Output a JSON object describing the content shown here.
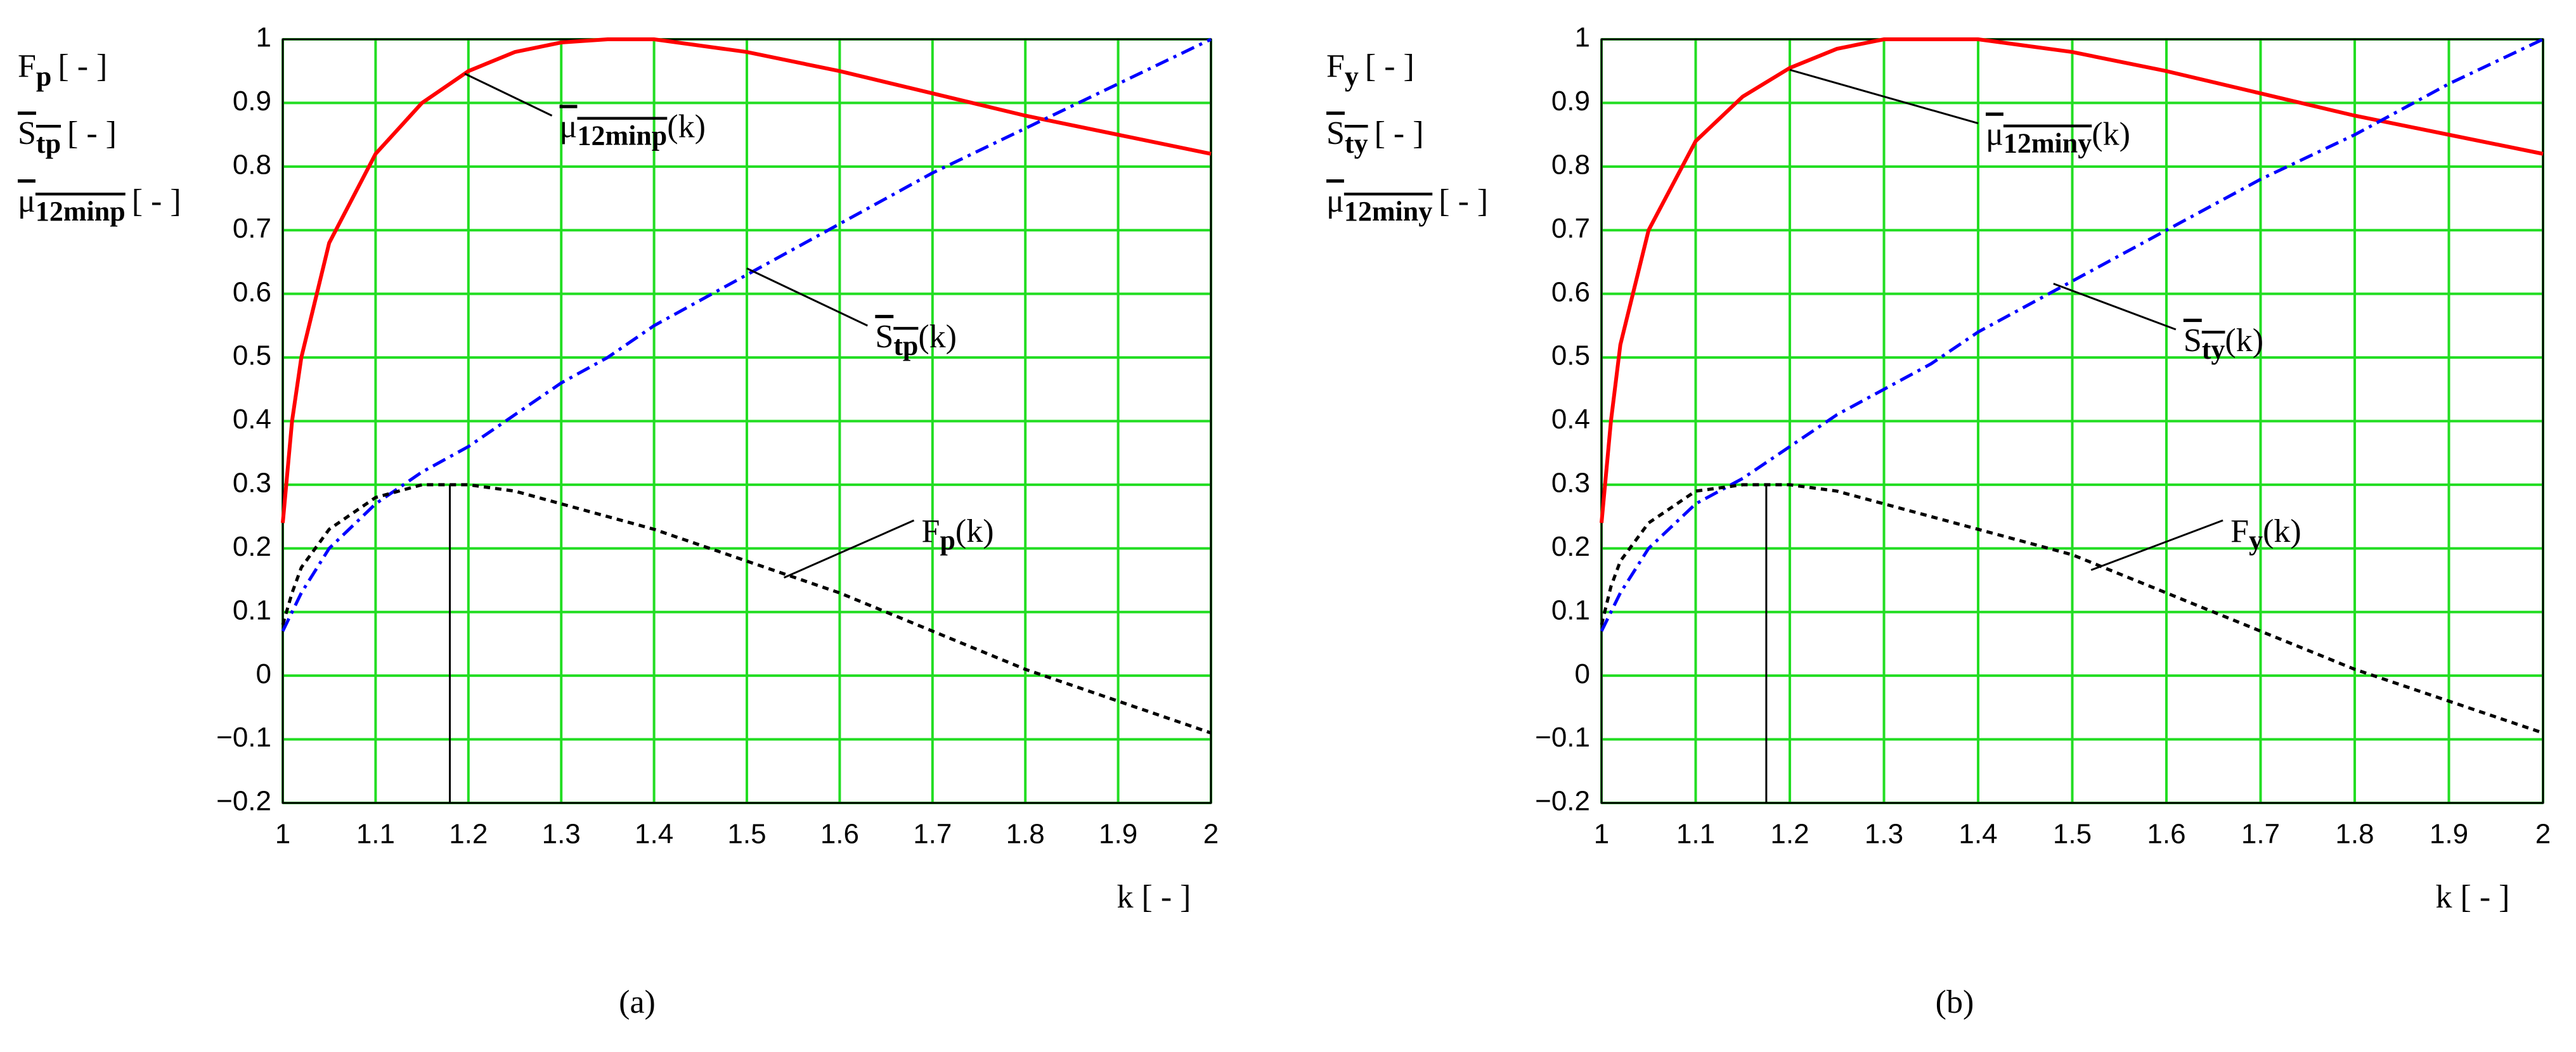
{
  "chart_data": [
    {
      "type": "line",
      "panel_label": "(a)",
      "x_label": "k [ - ]",
      "y_label": [
        {
          "main": "F",
          "sub": "p",
          "unit": "[ - ]"
        },
        {
          "main": "S",
          "sub": "tp",
          "unit": "[ - ]"
        },
        {
          "main": "μ",
          "sub": "12minp",
          "unit": "[ - ]"
        }
      ],
      "x": [
        1,
        1.01,
        1.02,
        1.05,
        1.1,
        1.15,
        1.2,
        1.25,
        1.3,
        1.35,
        1.4,
        1.5,
        1.6,
        1.7,
        1.8,
        1.9,
        2
      ],
      "series": [
        {
          "name": "μ",
          "sub": "12minp",
          "arg": "(k)",
          "color": "#ff0000",
          "style": "solid",
          "values": [
            0.24,
            0.4,
            0.5,
            0.68,
            0.82,
            0.9,
            0.95,
            0.98,
            0.995,
            1.0,
            1.0,
            0.98,
            0.95,
            0.915,
            0.88,
            0.85,
            0.82
          ]
        },
        {
          "name": "S",
          "sub": "tp",
          "arg": "(k)",
          "color": "#0000ff",
          "style": "dashdot",
          "values": [
            0.07,
            0.1,
            0.13,
            0.2,
            0.27,
            0.32,
            0.36,
            0.41,
            0.46,
            0.5,
            0.55,
            0.63,
            0.71,
            0.79,
            0.86,
            0.93,
            1.0
          ]
        },
        {
          "name": "F",
          "sub": "p",
          "arg": "(k)",
          "color": "#000000",
          "style": "dotted",
          "values": [
            0.08,
            0.13,
            0.17,
            0.23,
            0.28,
            0.3,
            0.3,
            0.29,
            0.27,
            0.25,
            0.23,
            0.18,
            0.13,
            0.07,
            0.01,
            -0.04,
            -0.09
          ]
        }
      ],
      "vline_x": 1.18,
      "xlim": [
        1,
        2
      ],
      "ylim": [
        -0.2,
        1
      ],
      "xticks": [
        1,
        1.1,
        1.2,
        1.3,
        1.4,
        1.5,
        1.6,
        1.7,
        1.8,
        1.9,
        2
      ],
      "yticks": [
        {
          "value": -0.2,
          "label": "−0.2"
        },
        {
          "value": -0.1,
          "label": "−0.1"
        },
        0,
        0.1,
        0.2,
        0.3,
        0.4,
        0.5,
        0.6,
        0.7,
        0.8,
        0.9,
        1
      ],
      "grid": true,
      "grid_color": "#22dd22"
    },
    {
      "type": "line",
      "panel_label": "(b)",
      "x_label": "k [ - ]",
      "y_label": [
        {
          "main": "F",
          "sub": "y",
          "unit": "[ - ]"
        },
        {
          "main": "S",
          "sub": "ty",
          "unit": "[ - ]"
        },
        {
          "main": "μ",
          "sub": "12miny",
          "unit": "[ - ]"
        }
      ],
      "x": [
        1,
        1.01,
        1.02,
        1.05,
        1.1,
        1.15,
        1.2,
        1.25,
        1.3,
        1.35,
        1.4,
        1.5,
        1.6,
        1.7,
        1.8,
        1.9,
        2
      ],
      "series": [
        {
          "name": "μ",
          "sub": "12miny",
          "arg": "(k)",
          "color": "#ff0000",
          "style": "solid",
          "values": [
            0.24,
            0.4,
            0.52,
            0.7,
            0.84,
            0.91,
            0.955,
            0.985,
            1.0,
            1.0,
            1.0,
            0.98,
            0.95,
            0.915,
            0.88,
            0.85,
            0.82
          ]
        },
        {
          "name": "S",
          "sub": "ty",
          "arg": "(k)",
          "color": "#0000ff",
          "style": "dashdot",
          "values": [
            0.07,
            0.1,
            0.13,
            0.2,
            0.27,
            0.31,
            0.36,
            0.41,
            0.45,
            0.49,
            0.54,
            0.62,
            0.7,
            0.78,
            0.85,
            0.93,
            1.0
          ]
        },
        {
          "name": "F",
          "sub": "y",
          "arg": "(k)",
          "color": "#000000",
          "style": "dotted",
          "values": [
            0.08,
            0.14,
            0.18,
            0.24,
            0.29,
            0.3,
            0.3,
            0.29,
            0.27,
            0.25,
            0.23,
            0.19,
            0.13,
            0.07,
            0.01,
            -0.04,
            -0.09
          ]
        }
      ],
      "vline_x": 1.175,
      "xlim": [
        1,
        2
      ],
      "ylim": [
        -0.2,
        1
      ],
      "xticks": [
        1,
        1.1,
        1.2,
        1.3,
        1.4,
        1.5,
        1.6,
        1.7,
        1.8,
        1.9,
        2
      ],
      "yticks": [
        {
          "value": -0.2,
          "label": "−0.2"
        },
        {
          "value": -0.1,
          "label": "−0.1"
        },
        0,
        0.1,
        0.2,
        0.3,
        0.4,
        0.5,
        0.6,
        0.7,
        0.8,
        0.9,
        1
      ],
      "grid": true,
      "grid_color": "#22dd22"
    }
  ]
}
